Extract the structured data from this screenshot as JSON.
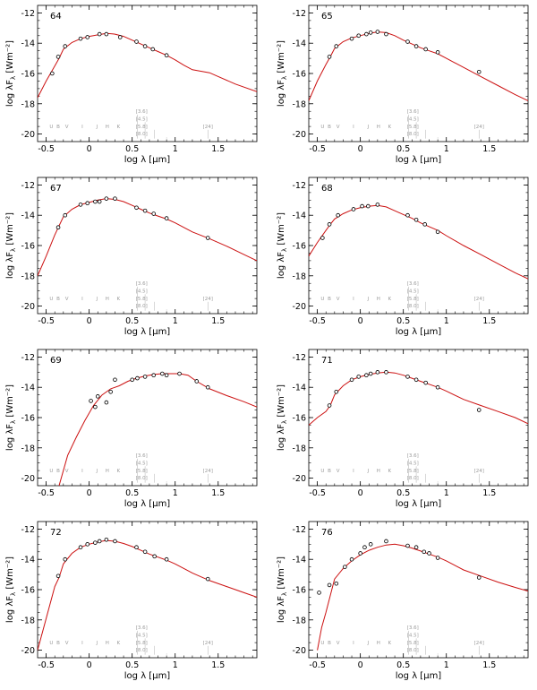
{
  "figure": {
    "colors": {
      "model": "#cc1111",
      "points": "#000000",
      "axis": "#000000",
      "band": "#9a9a9a"
    },
    "axes": {
      "xlabel": "log λ [μm]",
      "ylabel": "log λF",
      "ylabel_sub": "λ",
      "yunit": "[Wm⁻²]",
      "xlim": [
        -0.6,
        1.95
      ],
      "ylim": [
        -20.5,
        -11.5
      ],
      "xticks": [
        -0.5,
        0,
        0.5,
        1,
        1.5
      ],
      "xticklabels": [
        "-0.5",
        "0",
        "0.5",
        "1",
        "1.5"
      ],
      "yticks": [
        -12,
        -14,
        -16,
        -18,
        -20
      ],
      "yticklabels": [
        "-12",
        "-14",
        "-16",
        "-18",
        "-20"
      ]
    },
    "bands": {
      "optical": [
        {
          "label": "U",
          "x": -0.44
        },
        {
          "label": "B",
          "x": -0.36
        },
        {
          "label": "V",
          "x": -0.26
        },
        {
          "label": "I",
          "x": -0.08
        },
        {
          "label": "J",
          "x": 0.09
        },
        {
          "label": "H",
          "x": 0.21
        },
        {
          "label": "K",
          "x": 0.34
        }
      ],
      "irac": [
        {
          "label": "[3.6]",
          "x": 0.56
        },
        {
          "label": "[4.5]",
          "x": 0.65
        },
        {
          "label": "[5.8]",
          "x": 0.76
        },
        {
          "label": "[8.0]",
          "x": 0.9
        }
      ],
      "mips": [
        {
          "label": "[24]",
          "x": 1.38
        }
      ]
    }
  },
  "chart_data": [
    {
      "type": "scatter",
      "id": "64",
      "points": [
        [
          -0.43,
          -16.0
        ],
        [
          -0.36,
          -14.9
        ],
        [
          -0.28,
          -14.2
        ],
        [
          -0.1,
          -13.7
        ],
        [
          -0.02,
          -13.6
        ],
        [
          0.12,
          -13.4
        ],
        [
          0.2,
          -13.4
        ],
        [
          0.36,
          -13.6
        ],
        [
          0.55,
          -13.9
        ],
        [
          0.65,
          -14.2
        ],
        [
          0.74,
          -14.4
        ],
        [
          0.9,
          -14.8
        ]
      ],
      "model": [
        [
          -0.6,
          -17.6
        ],
        [
          -0.5,
          -16.5
        ],
        [
          -0.4,
          -15.5
        ],
        [
          -0.35,
          -15.0
        ],
        [
          -0.3,
          -14.4
        ],
        [
          -0.2,
          -13.95
        ],
        [
          -0.1,
          -13.7
        ],
        [
          0.0,
          -13.55
        ],
        [
          0.1,
          -13.45
        ],
        [
          0.2,
          -13.35
        ],
        [
          0.3,
          -13.4
        ],
        [
          0.4,
          -13.55
        ],
        [
          0.5,
          -13.8
        ],
        [
          0.6,
          -14.05
        ],
        [
          0.7,
          -14.3
        ],
        [
          0.8,
          -14.55
        ],
        [
          0.9,
          -14.8
        ],
        [
          1.0,
          -15.1
        ],
        [
          1.1,
          -15.45
        ],
        [
          1.2,
          -15.75
        ],
        [
          1.3,
          -15.85
        ],
        [
          1.4,
          -15.95
        ],
        [
          1.5,
          -16.2
        ],
        [
          1.7,
          -16.7
        ],
        [
          1.95,
          -17.2
        ]
      ]
    },
    {
      "type": "scatter",
      "id": "65",
      "points": [
        [
          -0.36,
          -14.9
        ],
        [
          -0.28,
          -14.2
        ],
        [
          -0.1,
          -13.7
        ],
        [
          -0.02,
          -13.5
        ],
        [
          0.07,
          -13.4
        ],
        [
          0.12,
          -13.3
        ],
        [
          0.2,
          -13.25
        ],
        [
          0.3,
          -13.4
        ],
        [
          0.55,
          -13.9
        ],
        [
          0.65,
          -14.2
        ],
        [
          0.76,
          -14.4
        ],
        [
          0.9,
          -14.6
        ],
        [
          1.38,
          -15.9
        ]
      ],
      "model": [
        [
          -0.6,
          -17.8
        ],
        [
          -0.5,
          -16.5
        ],
        [
          -0.4,
          -15.4
        ],
        [
          -0.35,
          -14.9
        ],
        [
          -0.3,
          -14.35
        ],
        [
          -0.2,
          -13.9
        ],
        [
          -0.1,
          -13.65
        ],
        [
          0.0,
          -13.5
        ],
        [
          0.1,
          -13.35
        ],
        [
          0.2,
          -13.25
        ],
        [
          0.3,
          -13.3
        ],
        [
          0.4,
          -13.5
        ],
        [
          0.5,
          -13.8
        ],
        [
          0.6,
          -14.05
        ],
        [
          0.7,
          -14.3
        ],
        [
          0.8,
          -14.5
        ],
        [
          0.9,
          -14.7
        ],
        [
          1.0,
          -15.0
        ],
        [
          1.2,
          -15.6
        ],
        [
          1.4,
          -16.2
        ],
        [
          1.6,
          -16.8
        ],
        [
          1.8,
          -17.4
        ],
        [
          1.95,
          -17.8
        ]
      ]
    },
    {
      "type": "scatter",
      "id": "67",
      "points": [
        [
          -0.36,
          -14.8
        ],
        [
          -0.28,
          -14.0
        ],
        [
          -0.1,
          -13.3
        ],
        [
          -0.02,
          -13.2
        ],
        [
          0.07,
          -13.1
        ],
        [
          0.12,
          -13.1
        ],
        [
          0.2,
          -12.9
        ],
        [
          0.3,
          -12.9
        ],
        [
          0.55,
          -13.5
        ],
        [
          0.65,
          -13.7
        ],
        [
          0.75,
          -13.9
        ],
        [
          0.9,
          -14.2
        ],
        [
          1.38,
          -15.5
        ]
      ],
      "model": [
        [
          -0.6,
          -18.0
        ],
        [
          -0.5,
          -16.7
        ],
        [
          -0.4,
          -15.3
        ],
        [
          -0.35,
          -14.7
        ],
        [
          -0.3,
          -14.1
        ],
        [
          -0.2,
          -13.6
        ],
        [
          -0.1,
          -13.3
        ],
        [
          0.0,
          -13.15
        ],
        [
          0.1,
          -13.0
        ],
        [
          0.2,
          -12.9
        ],
        [
          0.3,
          -12.95
        ],
        [
          0.4,
          -13.1
        ],
        [
          0.5,
          -13.35
        ],
        [
          0.6,
          -13.6
        ],
        [
          0.7,
          -13.85
        ],
        [
          0.8,
          -14.05
        ],
        [
          0.9,
          -14.25
        ],
        [
          1.0,
          -14.5
        ],
        [
          1.2,
          -15.1
        ],
        [
          1.4,
          -15.55
        ],
        [
          1.6,
          -16.05
        ],
        [
          1.8,
          -16.6
        ],
        [
          1.95,
          -17.0
        ]
      ]
    },
    {
      "type": "scatter",
      "id": "68",
      "points": [
        [
          -0.44,
          -15.5
        ],
        [
          -0.36,
          -14.6
        ],
        [
          -0.26,
          -14.0
        ],
        [
          -0.08,
          -13.6
        ],
        [
          0.02,
          -13.4
        ],
        [
          0.09,
          -13.4
        ],
        [
          0.2,
          -13.3
        ],
        [
          0.55,
          -14.0
        ],
        [
          0.65,
          -14.3
        ],
        [
          0.75,
          -14.6
        ],
        [
          0.9,
          -15.1
        ]
      ],
      "model": [
        [
          -0.6,
          -16.7
        ],
        [
          -0.5,
          -15.8
        ],
        [
          -0.4,
          -15.0
        ],
        [
          -0.35,
          -14.6
        ],
        [
          -0.3,
          -14.25
        ],
        [
          -0.2,
          -13.9
        ],
        [
          -0.1,
          -13.65
        ],
        [
          0.0,
          -13.5
        ],
        [
          0.1,
          -13.4
        ],
        [
          0.2,
          -13.35
        ],
        [
          0.3,
          -13.45
        ],
        [
          0.4,
          -13.7
        ],
        [
          0.5,
          -13.95
        ],
        [
          0.6,
          -14.2
        ],
        [
          0.7,
          -14.5
        ],
        [
          0.8,
          -14.75
        ],
        [
          0.9,
          -15.0
        ],
        [
          1.0,
          -15.35
        ],
        [
          1.2,
          -16.0
        ],
        [
          1.4,
          -16.6
        ],
        [
          1.6,
          -17.2
        ],
        [
          1.8,
          -17.8
        ],
        [
          1.95,
          -18.2
        ]
      ]
    },
    {
      "type": "scatter",
      "id": "69",
      "points": [
        [
          0.02,
          -14.9
        ],
        [
          0.07,
          -15.3
        ],
        [
          0.1,
          -14.6
        ],
        [
          0.2,
          -15.0
        ],
        [
          0.25,
          -14.3
        ],
        [
          0.3,
          -13.5
        ],
        [
          0.5,
          -13.5
        ],
        [
          0.56,
          -13.4
        ],
        [
          0.65,
          -13.3
        ],
        [
          0.75,
          -13.2
        ],
        [
          0.85,
          -13.1
        ],
        [
          0.9,
          -13.2
        ],
        [
          1.05,
          -13.1
        ],
        [
          1.25,
          -13.6
        ],
        [
          1.38,
          -14.0
        ]
      ],
      "model": [
        [
          -0.35,
          -20.5
        ],
        [
          -0.25,
          -18.5
        ],
        [
          -0.15,
          -17.3
        ],
        [
          -0.05,
          -16.2
        ],
        [
          0.05,
          -15.2
        ],
        [
          0.15,
          -14.5
        ],
        [
          0.25,
          -14.1
        ],
        [
          0.35,
          -13.9
        ],
        [
          0.45,
          -13.6
        ],
        [
          0.55,
          -13.4
        ],
        [
          0.65,
          -13.25
        ],
        [
          0.75,
          -13.15
        ],
        [
          0.85,
          -13.1
        ],
        [
          0.95,
          -13.1
        ],
        [
          1.05,
          -13.1
        ],
        [
          1.15,
          -13.2
        ],
        [
          1.25,
          -13.6
        ],
        [
          1.4,
          -14.1
        ],
        [
          1.6,
          -14.55
        ],
        [
          1.8,
          -14.95
        ],
        [
          1.95,
          -15.3
        ]
      ]
    },
    {
      "type": "scatter",
      "id": "71",
      "points": [
        [
          -0.36,
          -15.2
        ],
        [
          -0.28,
          -14.3
        ],
        [
          -0.1,
          -13.5
        ],
        [
          -0.02,
          -13.3
        ],
        [
          0.07,
          -13.2
        ],
        [
          0.12,
          -13.1
        ],
        [
          0.2,
          -13.0
        ],
        [
          0.3,
          -13.0
        ],
        [
          0.55,
          -13.3
        ],
        [
          0.65,
          -13.5
        ],
        [
          0.76,
          -13.7
        ],
        [
          0.9,
          -14.0
        ],
        [
          1.38,
          -15.5
        ]
      ],
      "model": [
        [
          -0.6,
          -16.5
        ],
        [
          -0.5,
          -16.0
        ],
        [
          -0.4,
          -15.6
        ],
        [
          -0.35,
          -15.2
        ],
        [
          -0.3,
          -14.5
        ],
        [
          -0.2,
          -13.9
        ],
        [
          -0.1,
          -13.5
        ],
        [
          0.0,
          -13.3
        ],
        [
          0.1,
          -13.15
        ],
        [
          0.2,
          -13.05
        ],
        [
          0.3,
          -13.0
        ],
        [
          0.4,
          -13.05
        ],
        [
          0.5,
          -13.2
        ],
        [
          0.6,
          -13.4
        ],
        [
          0.7,
          -13.6
        ],
        [
          0.8,
          -13.8
        ],
        [
          0.9,
          -14.0
        ],
        [
          1.0,
          -14.25
        ],
        [
          1.2,
          -14.8
        ],
        [
          1.4,
          -15.2
        ],
        [
          1.6,
          -15.6
        ],
        [
          1.8,
          -16.0
        ],
        [
          1.95,
          -16.4
        ]
      ]
    },
    {
      "type": "scatter",
      "id": "72",
      "points": [
        [
          -0.36,
          -15.1
        ],
        [
          -0.28,
          -14.0
        ],
        [
          -0.1,
          -13.2
        ],
        [
          -0.02,
          -13.0
        ],
        [
          0.07,
          -12.9
        ],
        [
          0.12,
          -12.8
        ],
        [
          0.2,
          -12.7
        ],
        [
          0.3,
          -12.8
        ],
        [
          0.55,
          -13.2
        ],
        [
          0.65,
          -13.5
        ],
        [
          0.76,
          -13.8
        ],
        [
          0.9,
          -14.0
        ],
        [
          1.38,
          -15.3
        ]
      ],
      "model": [
        [
          -0.6,
          -20.0
        ],
        [
          -0.5,
          -17.9
        ],
        [
          -0.4,
          -15.8
        ],
        [
          -0.35,
          -15.2
        ],
        [
          -0.3,
          -14.3
        ],
        [
          -0.2,
          -13.6
        ],
        [
          -0.1,
          -13.2
        ],
        [
          0.0,
          -13.0
        ],
        [
          0.1,
          -12.85
        ],
        [
          0.2,
          -12.75
        ],
        [
          0.3,
          -12.8
        ],
        [
          0.4,
          -12.95
        ],
        [
          0.5,
          -13.15
        ],
        [
          0.6,
          -13.4
        ],
        [
          0.7,
          -13.65
        ],
        [
          0.8,
          -13.85
        ],
        [
          0.9,
          -14.05
        ],
        [
          1.0,
          -14.3
        ],
        [
          1.2,
          -14.9
        ],
        [
          1.4,
          -15.4
        ],
        [
          1.6,
          -15.8
        ],
        [
          1.8,
          -16.2
        ],
        [
          1.95,
          -16.5
        ]
      ]
    },
    {
      "type": "scatter",
      "id": "76",
      "points": [
        [
          -0.48,
          -16.2
        ],
        [
          -0.36,
          -15.7
        ],
        [
          -0.28,
          -15.6
        ],
        [
          -0.18,
          -14.5
        ],
        [
          -0.1,
          -14.0
        ],
        [
          0.0,
          -13.6
        ],
        [
          0.05,
          -13.2
        ],
        [
          0.12,
          -13.0
        ],
        [
          0.3,
          -12.8
        ],
        [
          0.55,
          -13.1
        ],
        [
          0.65,
          -13.2
        ],
        [
          0.74,
          -13.5
        ],
        [
          0.8,
          -13.6
        ],
        [
          0.9,
          -13.9
        ],
        [
          1.38,
          -15.2
        ]
      ],
      "model": [
        [
          -0.5,
          -20.0
        ],
        [
          -0.45,
          -18.5
        ],
        [
          -0.4,
          -17.5
        ],
        [
          -0.35,
          -16.4
        ],
        [
          -0.3,
          -15.3
        ],
        [
          -0.2,
          -14.6
        ],
        [
          -0.1,
          -14.1
        ],
        [
          0.0,
          -13.7
        ],
        [
          0.1,
          -13.4
        ],
        [
          0.2,
          -13.2
        ],
        [
          0.3,
          -13.05
        ],
        [
          0.4,
          -13.0
        ],
        [
          0.5,
          -13.1
        ],
        [
          0.6,
          -13.25
        ],
        [
          0.7,
          -13.45
        ],
        [
          0.8,
          -13.65
        ],
        [
          0.9,
          -13.85
        ],
        [
          1.0,
          -14.1
        ],
        [
          1.2,
          -14.7
        ],
        [
          1.4,
          -15.1
        ],
        [
          1.6,
          -15.5
        ],
        [
          1.8,
          -15.85
        ],
        [
          1.95,
          -16.1
        ]
      ]
    }
  ]
}
